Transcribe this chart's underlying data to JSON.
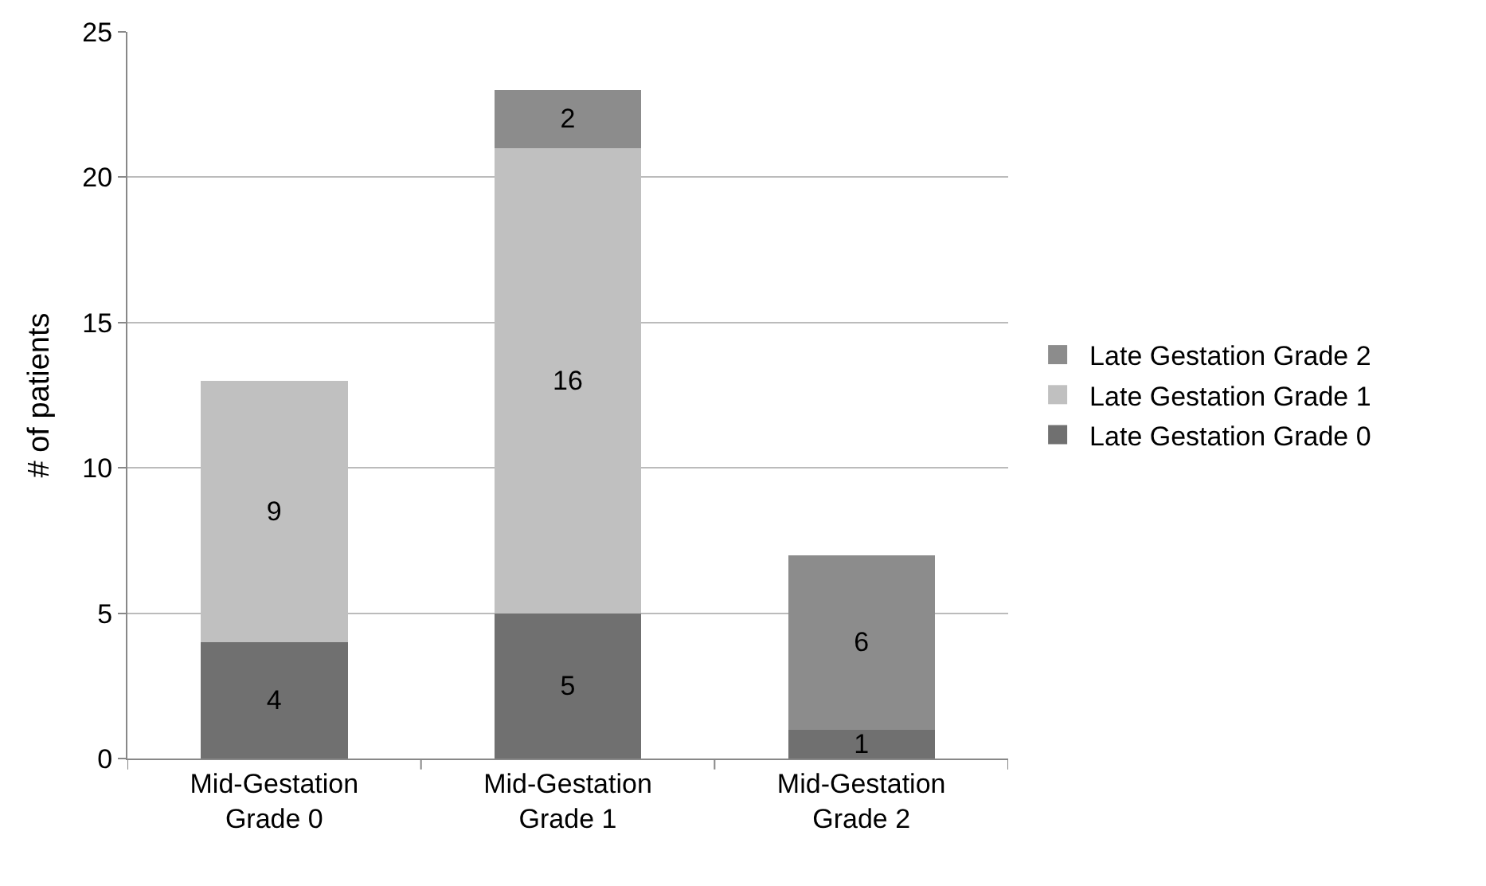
{
  "chart_data": {
    "type": "bar",
    "stacked": true,
    "ylabel": "# of patients",
    "categories": [
      "Mid-Gestation\nGrade 0",
      "Mid-Gestation\nGrade 1",
      "Mid-Gestation\nGrade 2"
    ],
    "series": [
      {
        "name": "Late Gestation Grade 0",
        "color": "#707070",
        "values": [
          4,
          5,
          1
        ]
      },
      {
        "name": "Late Gestation Grade 1",
        "color": "#c0c0c0",
        "values": [
          9,
          16,
          null
        ]
      },
      {
        "name": "Late Gestation Grade 2",
        "color": "#8c8c8c",
        "values": [
          null,
          2,
          6
        ]
      }
    ],
    "ylim": [
      0,
      25
    ],
    "yticks": [
      0,
      5,
      10,
      15,
      20,
      25
    ],
    "grid": "y",
    "legend": "right",
    "data_labels": true
  }
}
